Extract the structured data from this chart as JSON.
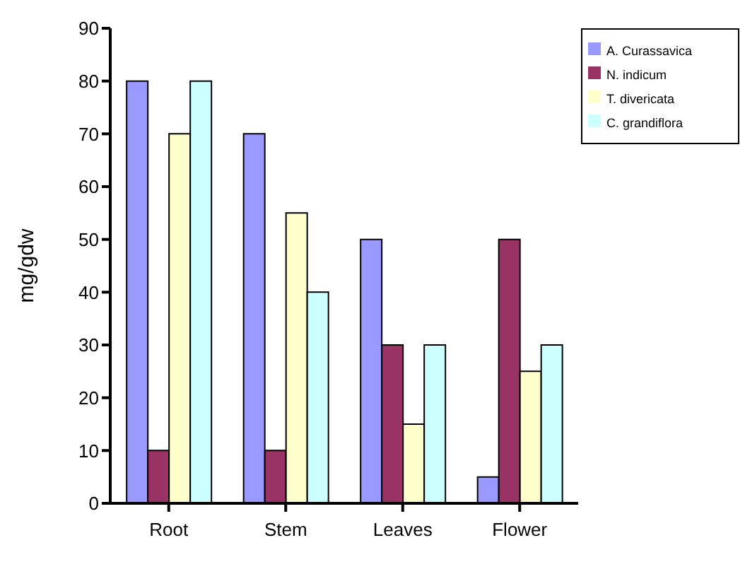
{
  "chart_data": {
    "type": "bar",
    "ylabel": "mg/gdw",
    "categories": [
      "Root",
      "Stem",
      "Leaves",
      "Flower"
    ],
    "series": [
      {
        "name": "A. Curassavica",
        "color": "#9999ff",
        "values": [
          80,
          70,
          50,
          5
        ]
      },
      {
        "name": "N. indicum",
        "color": "#993366",
        "values": [
          10,
          10,
          30,
          50
        ]
      },
      {
        "name": "T. divericata",
        "color": "#ffffcc",
        "values": [
          70,
          55,
          15,
          25
        ]
      },
      {
        "name": "C. grandiflora",
        "color": "#ccffff",
        "values": [
          80,
          40,
          30,
          30
        ]
      }
    ],
    "ylim": [
      0,
      90
    ],
    "yticks": [
      0,
      10,
      20,
      30,
      40,
      50,
      60,
      70,
      80,
      90
    ],
    "grid": false,
    "legend": "top right"
  }
}
